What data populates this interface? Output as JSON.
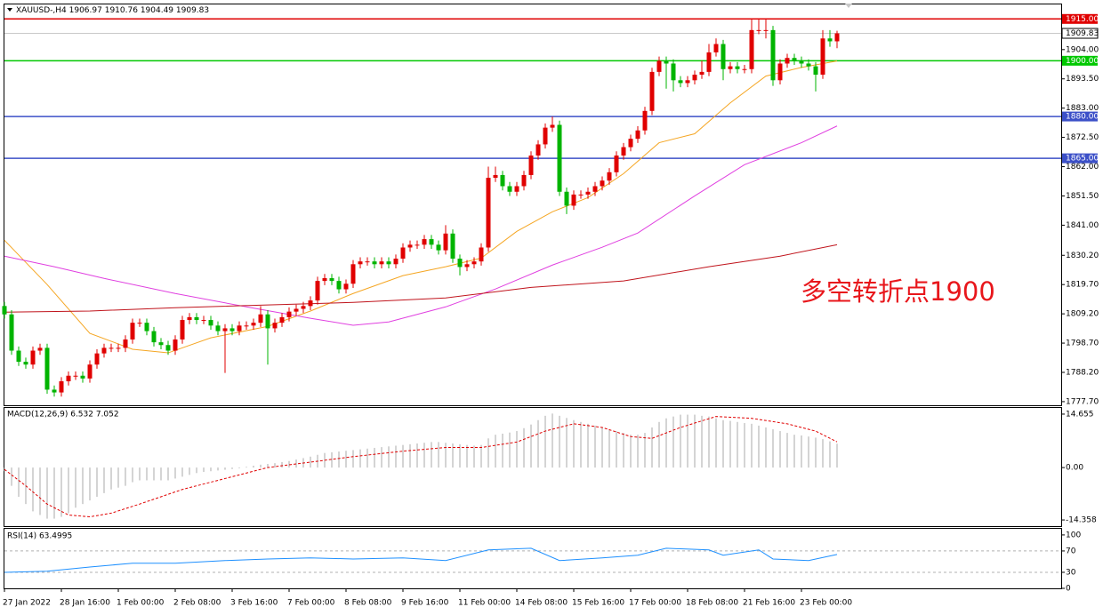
{
  "chart_data": [
    {
      "type": "candlestick",
      "title": "XAUUSD-,H4",
      "ohlc": [
        1906.97,
        1910.76,
        1904.49,
        1909.83
      ],
      "annotation": "多空转折点1900",
      "annotation_color": "#e8161b",
      "up_color": "#e00000",
      "down_color": "#00b400",
      "categories": [
        "27 Jan 2022",
        null,
        null,
        null,
        null,
        null,
        null,
        null,
        "28 Jan 16:00",
        null,
        null,
        null,
        null,
        null,
        null,
        null,
        "1 Feb 00:00",
        null,
        null,
        null,
        null,
        null,
        null,
        null,
        "2 Feb 08:00",
        null,
        null,
        null,
        null,
        null,
        null,
        null,
        "3 Feb 16:00",
        null,
        null,
        null,
        null,
        null,
        null,
        null,
        "7 Feb 00:00",
        null,
        null,
        null,
        null,
        null,
        null,
        null,
        "8 Feb 08:00",
        null,
        null,
        null,
        null,
        null,
        null,
        null,
        "9 Feb 16:00",
        null,
        null,
        null,
        null,
        null,
        null,
        null,
        "11 Feb 00:00",
        null,
        null,
        null,
        null,
        null,
        null,
        null,
        "14 Feb 08:00",
        null,
        null,
        null,
        null,
        null,
        null,
        null,
        "15 Feb 16:00",
        null,
        null,
        null,
        null,
        null,
        null,
        null,
        "17 Feb 00:00",
        null,
        null,
        null,
        null,
        null,
        null,
        null,
        "18 Feb 08:00",
        null,
        null,
        null,
        null,
        null,
        null,
        null,
        "21 Feb 16:00",
        null,
        null,
        null,
        null,
        null,
        null,
        null,
        "23 Feb 00:00",
        null,
        null,
        null,
        null,
        null
      ],
      "open": [
        1812,
        1809,
        1796,
        1792,
        1791,
        1796,
        1797,
        1782,
        1781,
        1785,
        1787,
        1787,
        1786,
        1791,
        1795,
        1797,
        1797,
        1797,
        1800,
        1806,
        1806,
        1803,
        1799,
        1798,
        1796,
        1800,
        1807,
        1808,
        1807,
        1807,
        1805,
        1803,
        1804,
        1803,
        1805,
        1805,
        1806,
        1809,
        1804,
        1806,
        1808,
        1810,
        1811,
        1812,
        1814,
        1821,
        1822,
        1821,
        1818,
        1820,
        1827,
        1828,
        1828,
        1827,
        1828,
        1827,
        1829,
        1833,
        1834,
        1834,
        1836,
        1834,
        1832,
        1838,
        1829,
        1826,
        1827,
        1828,
        1833,
        1858,
        1859,
        1855,
        1853,
        1855,
        1859,
        1866,
        1870,
        1876,
        1877,
        1853,
        1848,
        1852,
        1852,
        1853,
        1855,
        1857,
        1860,
        1866,
        1869,
        1872,
        1875,
        1882,
        1896,
        1900,
        1899,
        1893,
        1892,
        1893,
        1895,
        1896,
        1903,
        1906,
        1897,
        1898,
        1897,
        1897,
        1911,
        1911,
        1911,
        1893,
        1899,
        1901,
        1900,
        1899,
        1898,
        1895,
        1908,
        1906.97
      ],
      "high": [
        1813.5,
        1810.5,
        1797.5,
        1793.5,
        1797.5,
        1798.5,
        1798.5,
        1783.5,
        1786.5,
        1788.5,
        1788.5,
        1788.5,
        1792.5,
        1796.5,
        1798.5,
        1798.5,
        1798.5,
        1801.5,
        1807.5,
        1807.5,
        1807.5,
        1804.5,
        1800.5,
        1799.5,
        1801.5,
        1808.5,
        1809.5,
        1809.5,
        1808.5,
        1808.5,
        1806.5,
        1805.5,
        1805.5,
        1806.5,
        1806.5,
        1807.5,
        1812,
        1810.5,
        1807.5,
        1809.5,
        1811.5,
        1812.5,
        1813.5,
        1815.5,
        1822.5,
        1823.5,
        1823.5,
        1822.5,
        1821.5,
        1828.5,
        1829.5,
        1829.5,
        1829.5,
        1829.5,
        1829.5,
        1830.5,
        1834.5,
        1835.5,
        1835.5,
        1837.5,
        1837.5,
        1835.5,
        1841,
        1839.5,
        1830.5,
        1828.5,
        1829.5,
        1834.5,
        1862,
        1862,
        1860.5,
        1856.5,
        1856.5,
        1860.5,
        1867.5,
        1871.5,
        1877.5,
        1880,
        1878.5,
        1854.5,
        1853.5,
        1853.5,
        1854.5,
        1856.5,
        1858.5,
        1861.5,
        1867.5,
        1870.5,
        1873.5,
        1876.5,
        1883.5,
        1897.5,
        1901.5,
        1901.5,
        1900.5,
        1894.5,
        1894.5,
        1896.5,
        1900,
        1906,
        1908,
        1907.5,
        1899.5,
        1899.5,
        1898.5,
        1915,
        1915,
        1915,
        1912.5,
        1900.5,
        1902.5,
        1902.5,
        1901.5,
        1900.5,
        1899.5,
        1911,
        1911,
        1910.76
      ],
      "low": [
        1807.5,
        1794.5,
        1790.5,
        1789.5,
        1789.5,
        1794.5,
        1780.5,
        1779.5,
        1779.5,
        1783.5,
        1785.5,
        1784.5,
        1784.5,
        1789.5,
        1793.5,
        1795.5,
        1795.5,
        1795.5,
        1798.5,
        1804.5,
        1801.5,
        1797.5,
        1796.5,
        1794.5,
        1794.5,
        1798.5,
        1805.5,
        1805.5,
        1805.5,
        1803.5,
        1801.5,
        1788,
        1801.5,
        1801.5,
        1803.5,
        1803.5,
        1804.5,
        1791,
        1802.5,
        1804.5,
        1806.5,
        1808.5,
        1809.5,
        1810.5,
        1812.5,
        1819.5,
        1819.5,
        1816.5,
        1816.5,
        1818.5,
        1825.5,
        1826.5,
        1825.5,
        1825.5,
        1825.5,
        1825.5,
        1827.5,
        1831.5,
        1832.5,
        1832.5,
        1832.5,
        1830.5,
        1830.5,
        1827.5,
        1823,
        1824.5,
        1825.5,
        1826.5,
        1831.5,
        1856.5,
        1853.5,
        1851.5,
        1851.5,
        1853.5,
        1857.5,
        1864.5,
        1868.5,
        1874.5,
        1851.5,
        1845,
        1846.5,
        1850.5,
        1850.5,
        1851.5,
        1853.5,
        1855.5,
        1858.5,
        1864.5,
        1867.5,
        1870.5,
        1873.5,
        1880.5,
        1894.5,
        1890,
        1889,
        1890.5,
        1890.5,
        1891.5,
        1893.5,
        1894.5,
        1901.5,
        1893,
        1895.5,
        1895.5,
        1895.5,
        1895.5,
        1909.5,
        1908,
        1891,
        1891.5,
        1897.5,
        1898.5,
        1897.5,
        1896.5,
        1889,
        1893.5,
        1905,
        1904.49
      ],
      "close": [
        1809,
        1796,
        1792,
        1791,
        1796,
        1797,
        1782,
        1781,
        1785,
        1787,
        1787,
        1786,
        1791,
        1795,
        1797,
        1797,
        1797,
        1800,
        1806,
        1806,
        1803,
        1799,
        1798,
        1796,
        1800,
        1807,
        1808,
        1807,
        1807,
        1805,
        1803,
        1804,
        1803,
        1805,
        1805,
        1806,
        1809,
        1804,
        1806,
        1808,
        1810,
        1811,
        1812,
        1814,
        1821,
        1822,
        1821,
        1818,
        1820,
        1827,
        1828,
        1828,
        1827,
        1828,
        1827,
        1829,
        1833,
        1834,
        1834,
        1836,
        1834,
        1832,
        1838,
        1829,
        1826,
        1827,
        1828,
        1833,
        1858,
        1859,
        1855,
        1853,
        1855,
        1859,
        1866,
        1870,
        1876,
        1877,
        1853,
        1848,
        1852,
        1852,
        1853,
        1855,
        1857,
        1860,
        1866,
        1869,
        1872,
        1875,
        1882,
        1896,
        1900,
        1899,
        1893,
        1892,
        1893,
        1895,
        1896,
        1903,
        1906,
        1897,
        1898,
        1897,
        1897,
        1911,
        1911,
        1911,
        1893,
        1899,
        1901,
        1900,
        1899,
        1898,
        1895,
        1908,
        1906.97,
        1909.83
      ],
      "lines": [
        {
          "color": "#f5a623",
          "x": [
            0,
            6,
            12,
            18,
            23,
            29,
            37,
            43,
            49,
            56,
            62,
            67,
            72,
            77,
            82,
            87,
            92,
            97,
            102,
            107,
            112,
            117
          ],
          "values": [
            1835.6,
            1819.7,
            1802.2,
            1796.5,
            1795.2,
            1800.6,
            1804.7,
            1810.2,
            1816.5,
            1822.9,
            1826.1,
            1829.2,
            1838.8,
            1845.8,
            1850.9,
            1859.5,
            1870.6,
            1873.8,
            1884.9,
            1894.5,
            1897.6,
            1899.9
          ]
        },
        {
          "color": "#e040e0",
          "x": [
            0,
            7,
            14,
            24,
            34,
            43,
            49,
            54,
            62,
            69,
            77,
            84,
            89,
            97,
            104,
            112,
            117
          ],
          "values": [
            1829.9,
            1826.1,
            1821.9,
            1816.5,
            1811.7,
            1807.6,
            1805.1,
            1806.3,
            1811.7,
            1818.1,
            1826.7,
            1833.1,
            1838.2,
            1851.5,
            1862.7,
            1870.6,
            1876.6
          ]
        },
        {
          "color": "#c0141c",
          "x": [
            0,
            12,
            24,
            37,
            49,
            62,
            74,
            87,
            99,
            109,
            117
          ],
          "values": [
            1809.8,
            1810.2,
            1811.4,
            1812.4,
            1813.3,
            1814.9,
            1818.7,
            1821.0,
            1826.1,
            1829.9,
            1834.0
          ]
        }
      ],
      "hlines": [
        {
          "value": 1915,
          "label": "1915.00",
          "color": "#e00000",
          "text_color": "#ffffff"
        },
        {
          "value": 1909.83,
          "label": "1909.83",
          "color": "#c8c8c8",
          "text_color": "#000000"
        },
        {
          "value": 1900,
          "label": "1900.00",
          "color": "#00c800",
          "text_color": "#ffffff"
        },
        {
          "value": 1880,
          "label": "1880.00",
          "color": "#3c50c8",
          "text_color": "#ffffff"
        },
        {
          "value": 1865,
          "label": "1865.00",
          "color": "#3c50c8",
          "text_color": "#ffffff"
        }
      ],
      "ylim": [
        1776.4,
        1920.2
      ],
      "yticks": [
        {
          "value": 1904,
          "label": "1904.00"
        },
        {
          "value": 1893.5,
          "label": "1893.50"
        },
        {
          "value": 1883,
          "label": "1883.00"
        },
        {
          "value": 1872.5,
          "label": "1872.50"
        },
        {
          "value": 1862,
          "label": "1862.00"
        },
        {
          "value": 1851.5,
          "label": "1851.50"
        },
        {
          "value": 1841,
          "label": "1841.00"
        },
        {
          "value": 1830.2,
          "label": "1830.20"
        },
        {
          "value": 1819.7,
          "label": "1819.70"
        },
        {
          "value": 1809.2,
          "label": "1809.20"
        },
        {
          "value": 1798.7,
          "label": "1798.70"
        },
        {
          "value": 1788.2,
          "label": "1788.20"
        },
        {
          "value": 1777.7,
          "label": "1777.70"
        }
      ]
    },
    {
      "type": "bar",
      "title": "MACD(12,26,9) 6.532 7.052",
      "color": "#a8a8a8",
      "values": [
        -1,
        -5,
        -8,
        -10,
        -12,
        -13,
        -14,
        -14,
        -13.5,
        -12.5,
        -11,
        -10,
        -9,
        -8,
        -7,
        -6,
        -5.5,
        -5,
        -4,
        -3.5,
        -3.5,
        -3.5,
        -3.5,
        -3.5,
        -3,
        -2.5,
        -2,
        -1.5,
        -1.2,
        -1,
        -0.8,
        -0.6,
        -0.4,
        -0.2,
        0.2,
        0.5,
        0.8,
        1,
        1.2,
        1.5,
        1.8,
        2.2,
        2.6,
        3,
        3.5,
        4,
        4.2,
        4.4,
        4.6,
        4.8,
        5,
        5.2,
        5.4,
        5.6,
        5.8,
        6,
        6.2,
        6.4,
        6.6,
        6.8,
        7,
        7,
        6.8,
        6.6,
        6.4,
        6.2,
        6,
        6.2,
        8,
        9,
        9.3,
        9.6,
        10,
        10.8,
        11.8,
        13,
        14.2,
        14.8,
        14.2,
        13.6,
        13,
        12.5,
        12,
        11.5,
        11,
        10.5,
        10,
        9.5,
        9,
        9,
        9.5,
        11,
        12.5,
        13.5,
        14,
        14.5,
        14.5,
        14.5,
        14.2,
        14,
        13.5,
        13,
        12.8,
        12.5,
        12.2,
        12,
        11.5,
        11,
        10.5,
        10,
        9.5,
        9,
        8.8,
        8.5,
        8.2,
        7.8,
        7.2,
        6.532
      ],
      "signal": {
        "color": "#e00000",
        "x": [
          0,
          3,
          6,
          9,
          12,
          15,
          19,
          25,
          31,
          37,
          43,
          49,
          56,
          62,
          67,
          72,
          76,
          80,
          84,
          88,
          91,
          95,
          100,
          105,
          110,
          114,
          117
        ],
        "values": [
          -0.5,
          -5,
          -10,
          -13,
          -13.5,
          -12.5,
          -10,
          -6,
          -3,
          0,
          1.5,
          3,
          4.5,
          5.5,
          5.5,
          7,
          10,
          12,
          11,
          8.5,
          8,
          11,
          14,
          13.5,
          12,
          10,
          7.052
        ]
      },
      "ylim": [
        -16.05,
        16.35
      ],
      "yticks": [
        14.655,
        {
          "value": 0,
          "label": "0.00"
        },
        -14.358
      ]
    },
    {
      "type": "line",
      "title": "RSI(14) 63.4995",
      "color": "#1e90ff",
      "x": [
        0,
        6,
        12,
        18,
        24,
        31,
        37,
        43,
        49,
        56,
        62,
        68,
        74,
        78,
        84,
        89,
        93,
        99,
        101,
        106,
        108,
        113,
        117
      ],
      "values": [
        30,
        32,
        40,
        47,
        47,
        52,
        55,
        57,
        55,
        57,
        52,
        72,
        75,
        52,
        57,
        62,
        75,
        72,
        62,
        72,
        55,
        52,
        63.4995
      ],
      "levels": [
        70,
        30
      ],
      "ylim": [
        0,
        111.5
      ],
      "yticks": [
        100,
        70,
        30,
        0
      ]
    }
  ]
}
